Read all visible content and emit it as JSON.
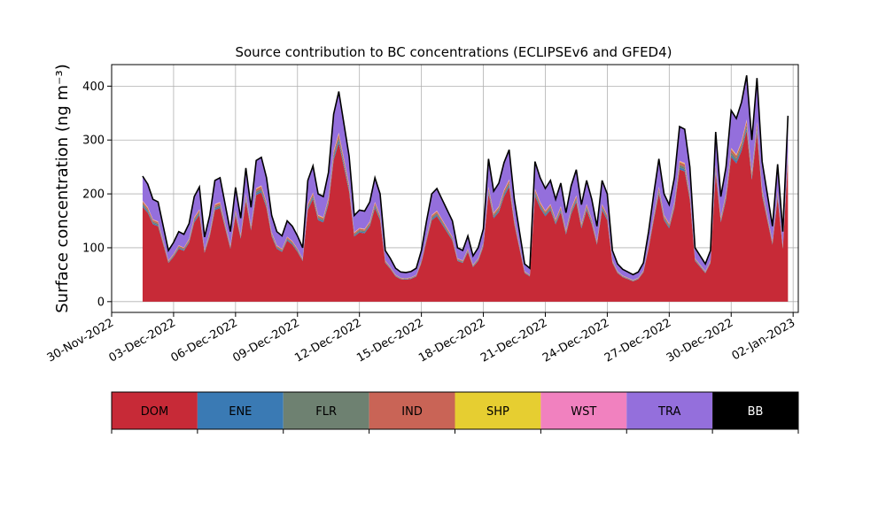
{
  "chart_data": {
    "type": "area",
    "stacked": true,
    "title": "Source contribution to BC concentrations (ECLIPSEv6 and GFED4)",
    "ylabel": "Surface concentration (ng m⁻³)",
    "xlabel": "",
    "grid": true,
    "ylim": [
      -20,
      440
    ],
    "yticks": [
      0,
      100,
      200,
      300,
      400
    ],
    "xlim": [
      "2022-11-30T00:00",
      "2023-01-02T06:00"
    ],
    "xticks": [
      "30-Nov-2022",
      "03-Dec-2022",
      "06-Dec-2022",
      "09-Dec-2022",
      "12-Dec-2022",
      "15-Dec-2022",
      "18-Dec-2022",
      "21-Dec-2022",
      "24-Dec-2022",
      "27-Dec-2022",
      "30-Dec-2022",
      "02-Jan-2023"
    ],
    "x_start": "2022-12-01T12:00",
    "x_step_hours": 6,
    "legend_position": "below",
    "series_meta": [
      {
        "name": "DOM",
        "color": "#c72a37"
      },
      {
        "name": "ENE",
        "color": "#3a7ab4"
      },
      {
        "name": "FLR",
        "color": "#6e8171"
      },
      {
        "name": "IND",
        "color": "#c96456"
      },
      {
        "name": "SHP",
        "color": "#e6ce31"
      },
      {
        "name": "WST",
        "color": "#f181bf"
      },
      {
        "name": "TRA",
        "color": "#946fdc"
      },
      {
        "name": "BB",
        "color": "#000000"
      }
    ],
    "total_anchors": [
      [
        "2022-12-01T12:00",
        233
      ],
      [
        "2022-12-01T18:00",
        218
      ],
      [
        "2022-12-02T00:00",
        190
      ],
      [
        "2022-12-02T06:00",
        185
      ],
      [
        "2022-12-02T12:00",
        140
      ],
      [
        "2022-12-02T18:00",
        95
      ],
      [
        "2022-12-03T00:00",
        110
      ],
      [
        "2022-12-03T06:00",
        130
      ],
      [
        "2022-12-03T12:00",
        125
      ],
      [
        "2022-12-03T18:00",
        145
      ],
      [
        "2022-12-04T00:00",
        195
      ],
      [
        "2022-12-04T06:00",
        213
      ],
      [
        "2022-12-04T12:00",
        120
      ],
      [
        "2022-12-04T18:00",
        160
      ],
      [
        "2022-12-05T00:00",
        225
      ],
      [
        "2022-12-05T06:00",
        230
      ],
      [
        "2022-12-05T12:00",
        180
      ],
      [
        "2022-12-05T18:00",
        130
      ],
      [
        "2022-12-06T00:00",
        212
      ],
      [
        "2022-12-06T06:00",
        155
      ],
      [
        "2022-12-06T12:00",
        248
      ],
      [
        "2022-12-06T18:00",
        175
      ],
      [
        "2022-12-07T00:00",
        262
      ],
      [
        "2022-12-07T06:00",
        268
      ],
      [
        "2022-12-07T12:00",
        230
      ],
      [
        "2022-12-07T18:00",
        160
      ],
      [
        "2022-12-08T00:00",
        130
      ],
      [
        "2022-12-08T06:00",
        122
      ],
      [
        "2022-12-08T12:00",
        150
      ],
      [
        "2022-12-08T18:00",
        140
      ],
      [
        "2022-12-09T00:00",
        122
      ],
      [
        "2022-12-09T06:00",
        100
      ],
      [
        "2022-12-09T12:00",
        225
      ],
      [
        "2022-12-09T18:00",
        252
      ],
      [
        "2022-12-10T00:00",
        200
      ],
      [
        "2022-12-10T06:00",
        195
      ],
      [
        "2022-12-10T12:00",
        240
      ],
      [
        "2022-12-10T18:00",
        348
      ],
      [
        "2022-12-11T00:00",
        390
      ],
      [
        "2022-12-11T06:00",
        330
      ],
      [
        "2022-12-11T12:00",
        270
      ],
      [
        "2022-12-11T18:00",
        160
      ],
      [
        "2022-12-12T00:00",
        170
      ],
      [
        "2022-12-12T06:00",
        168
      ],
      [
        "2022-12-12T12:00",
        185
      ],
      [
        "2022-12-12T18:00",
        230
      ],
      [
        "2022-12-13T00:00",
        200
      ],
      [
        "2022-12-13T06:00",
        95
      ],
      [
        "2022-12-13T12:00",
        80
      ],
      [
        "2022-12-13T18:00",
        62
      ],
      [
        "2022-12-14T00:00",
        55
      ],
      [
        "2022-12-14T06:00",
        54
      ],
      [
        "2022-12-14T12:00",
        56
      ],
      [
        "2022-12-14T18:00",
        62
      ],
      [
        "2022-12-15T00:00",
        95
      ],
      [
        "2022-12-15T06:00",
        150
      ],
      [
        "2022-12-15T12:00",
        200
      ],
      [
        "2022-12-15T18:00",
        210
      ],
      [
        "2022-12-16T00:00",
        190
      ],
      [
        "2022-12-16T06:00",
        170
      ],
      [
        "2022-12-16T12:00",
        150
      ],
      [
        "2022-12-16T18:00",
        100
      ],
      [
        "2022-12-17T00:00",
        95
      ],
      [
        "2022-12-17T06:00",
        122
      ],
      [
        "2022-12-17T12:00",
        85
      ],
      [
        "2022-12-17T18:00",
        100
      ],
      [
        "2022-12-18T00:00",
        135
      ],
      [
        "2022-12-18T06:00",
        265
      ],
      [
        "2022-12-18T12:00",
        205
      ],
      [
        "2022-12-18T18:00",
        220
      ],
      [
        "2022-12-19T00:00",
        258
      ],
      [
        "2022-12-19T06:00",
        282
      ],
      [
        "2022-12-19T12:00",
        190
      ],
      [
        "2022-12-19T18:00",
        130
      ],
      [
        "2022-12-20T00:00",
        70
      ],
      [
        "2022-12-20T06:00",
        62
      ],
      [
        "2022-12-20T12:00",
        260
      ],
      [
        "2022-12-20T18:00",
        230
      ],
      [
        "2022-12-21T00:00",
        210
      ],
      [
        "2022-12-21T06:00",
        225
      ],
      [
        "2022-12-21T12:00",
        190
      ],
      [
        "2022-12-21T18:00",
        220
      ],
      [
        "2022-12-22T00:00",
        165
      ],
      [
        "2022-12-22T06:00",
        215
      ],
      [
        "2022-12-22T12:00",
        245
      ],
      [
        "2022-12-22T18:00",
        180
      ],
      [
        "2022-12-23T00:00",
        225
      ],
      [
        "2022-12-23T06:00",
        190
      ],
      [
        "2022-12-23T12:00",
        140
      ],
      [
        "2022-12-23T18:00",
        225
      ],
      [
        "2022-12-24T00:00",
        200
      ],
      [
        "2022-12-24T06:00",
        95
      ],
      [
        "2022-12-24T12:00",
        70
      ],
      [
        "2022-12-24T18:00",
        60
      ],
      [
        "2022-12-25T00:00",
        55
      ],
      [
        "2022-12-25T06:00",
        50
      ],
      [
        "2022-12-25T12:00",
        55
      ],
      [
        "2022-12-25T18:00",
        72
      ],
      [
        "2022-12-26T00:00",
        130
      ],
      [
        "2022-12-26T06:00",
        200
      ],
      [
        "2022-12-26T12:00",
        265
      ],
      [
        "2022-12-26T18:00",
        200
      ],
      [
        "2022-12-27T00:00",
        180
      ],
      [
        "2022-12-27T06:00",
        230
      ],
      [
        "2022-12-27T12:00",
        325
      ],
      [
        "2022-12-27T18:00",
        320
      ],
      [
        "2022-12-28T00:00",
        250
      ],
      [
        "2022-12-28T06:00",
        100
      ],
      [
        "2022-12-28T12:00",
        85
      ],
      [
        "2022-12-28T18:00",
        70
      ],
      [
        "2022-12-29T00:00",
        95
      ],
      [
        "2022-12-29T06:00",
        315
      ],
      [
        "2022-12-29T12:00",
        195
      ],
      [
        "2022-12-29T18:00",
        250
      ],
      [
        "2022-12-30T00:00",
        355
      ],
      [
        "2022-12-30T06:00",
        340
      ],
      [
        "2022-12-30T12:00",
        370
      ],
      [
        "2022-12-30T18:00",
        420
      ],
      [
        "2022-12-31T00:00",
        300
      ],
      [
        "2022-12-31T06:00",
        415
      ],
      [
        "2022-12-31T12:00",
        260
      ],
      [
        "2022-12-31T18:00",
        200
      ],
      [
        "2023-01-01T00:00",
        140
      ],
      [
        "2023-01-01T06:00",
        255
      ],
      [
        "2023-01-01T12:00",
        130
      ],
      [
        "2023-01-01T18:00",
        345
      ]
    ]
  },
  "legend": {
    "labels": [
      "DOM",
      "ENE",
      "FLR",
      "IND",
      "SHP",
      "WST",
      "TRA",
      "BB"
    ],
    "text_colors": [
      "#000000",
      "#000000",
      "#000000",
      "#000000",
      "#000000",
      "#000000",
      "#000000",
      "#ffffff"
    ]
  }
}
